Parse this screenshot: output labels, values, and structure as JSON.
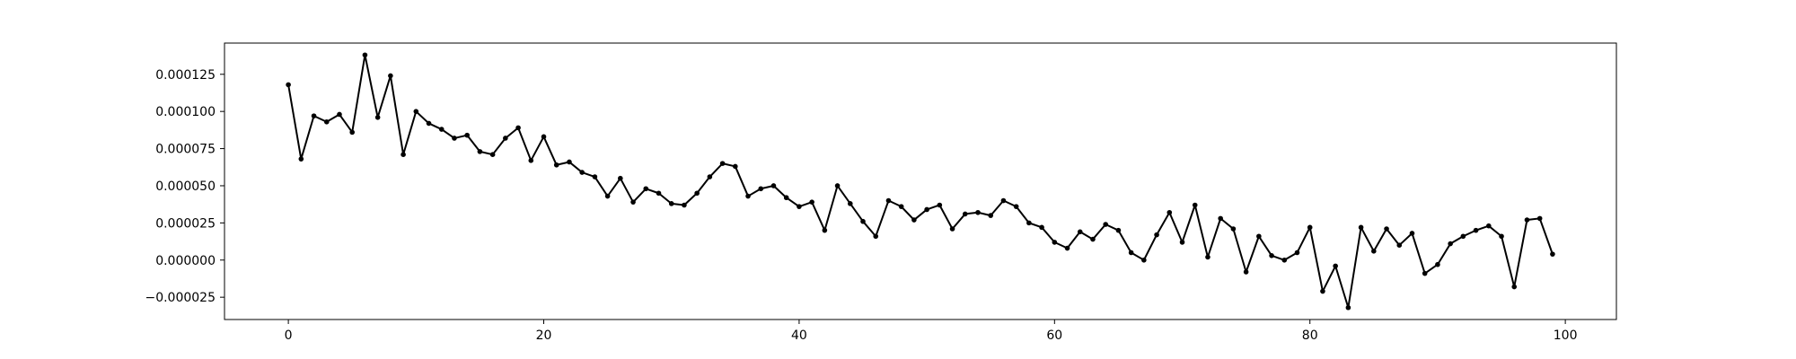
{
  "chart_data": {
    "type": "line",
    "title": "",
    "xlabel": "",
    "ylabel": "",
    "xlim": [
      -5,
      104
    ],
    "ylim": [
      -4e-05,
      0.000146
    ],
    "grid": false,
    "legend": "none",
    "series": [
      {
        "name": "series-0",
        "color": "#000000",
        "marker": "dot",
        "x": [
          0,
          1,
          2,
          3,
          4,
          5,
          6,
          7,
          8,
          9,
          10,
          11,
          12,
          13,
          14,
          15,
          16,
          17,
          18,
          19,
          20,
          21,
          22,
          23,
          24,
          25,
          26,
          27,
          28,
          29,
          30,
          31,
          32,
          33,
          34,
          35,
          36,
          37,
          38,
          39,
          40,
          41,
          42,
          43,
          44,
          45,
          46,
          47,
          48,
          49,
          50,
          51,
          52,
          53,
          54,
          55,
          56,
          57,
          58,
          59,
          60,
          61,
          62,
          63,
          64,
          65,
          66,
          67,
          68,
          69,
          70,
          71,
          72,
          73,
          74,
          75,
          76,
          77,
          78,
          79,
          80,
          81,
          82,
          83,
          84,
          85,
          86,
          87,
          88,
          89,
          90,
          91,
          92,
          93,
          94,
          95,
          96,
          97,
          98,
          99
        ],
        "y": [
          0.000118,
          6.8e-05,
          9.7e-05,
          9.3e-05,
          9.8e-05,
          8.6e-05,
          0.000138,
          9.6e-05,
          0.000124,
          7.1e-05,
          0.0001,
          9.2e-05,
          8.8e-05,
          8.2e-05,
          8.4e-05,
          7.3e-05,
          7.1e-05,
          8.2e-05,
          8.9e-05,
          6.7e-05,
          8.3e-05,
          6.4e-05,
          6.6e-05,
          5.9e-05,
          5.6e-05,
          4.3e-05,
          5.5e-05,
          3.9e-05,
          4.8e-05,
          4.5e-05,
          3.8e-05,
          3.7e-05,
          4.5e-05,
          5.6e-05,
          6.5e-05,
          6.3e-05,
          4.3e-05,
          4.8e-05,
          5e-05,
          4.2e-05,
          3.6e-05,
          3.9e-05,
          2e-05,
          5e-05,
          3.8e-05,
          2.6e-05,
          1.6e-05,
          4e-05,
          3.6e-05,
          2.7e-05,
          3.4e-05,
          3.7e-05,
          2.1e-05,
          3.1e-05,
          3.2e-05,
          3e-05,
          4e-05,
          3.6e-05,
          2.5e-05,
          2.2e-05,
          1.2e-05,
          8e-06,
          1.9e-05,
          1.4e-05,
          2.4e-05,
          2e-05,
          5e-06,
          0,
          1.7e-05,
          3.2e-05,
          1.2e-05,
          3.7e-05,
          2e-06,
          2.8e-05,
          2.1e-05,
          -8e-06,
          1.6e-05,
          3e-06,
          0,
          5e-06,
          2.2e-05,
          -2.1e-05,
          -4e-06,
          -3.2e-05,
          2.2e-05,
          6e-06,
          2.1e-05,
          1e-05,
          1.8e-05,
          -9e-06,
          -3e-06,
          1.1e-05,
          1.6e-05,
          2e-05,
          2.3e-05,
          1.6e-05,
          -1.8e-05,
          2.7e-05,
          2.8e-05,
          4e-06
        ]
      }
    ],
    "x_ticks": [
      {
        "value": 0,
        "label": "0"
      },
      {
        "value": 20,
        "label": "20"
      },
      {
        "value": 40,
        "label": "40"
      },
      {
        "value": 60,
        "label": "60"
      },
      {
        "value": 80,
        "label": "80"
      },
      {
        "value": 100,
        "label": "100"
      }
    ],
    "y_ticks": [
      {
        "value": -2.5e-05,
        "label": "−0.000025"
      },
      {
        "value": 0.0,
        "label": "0.000000"
      },
      {
        "value": 2.5e-05,
        "label": "0.000025"
      },
      {
        "value": 5e-05,
        "label": "0.000050"
      },
      {
        "value": 7.5e-05,
        "label": "0.000075"
      },
      {
        "value": 0.0001,
        "label": "0.000100"
      },
      {
        "value": 0.000125,
        "label": "0.000125"
      }
    ]
  }
}
